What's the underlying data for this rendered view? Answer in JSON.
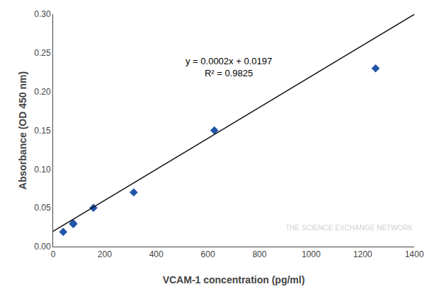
{
  "chart_data": {
    "type": "scatter",
    "xlabel": "VCAM-1 concentration (pg/ml)",
    "ylabel": "Absorbance (OD 450 nm)",
    "series": [
      {
        "type": "scatter",
        "marker": "diamond",
        "color": "#2255aa",
        "x": [
          39.06,
          78.13,
          78.13,
          156.25,
          312.5,
          625.0,
          1250.0
        ],
        "values": [
          0.019,
          0.029,
          0.03,
          0.05,
          0.07,
          0.15,
          0.23
        ]
      },
      {
        "type": "line",
        "line_style": "solid",
        "color": "#111111",
        "x": [
          0,
          1400
        ],
        "values": [
          0.0197,
          0.2997
        ]
      }
    ],
    "annotations": [
      {
        "text": "y = 0.0002x + 0.0197\nR² = 0.9825",
        "x": 680,
        "y": 0.248
      },
      {
        "text": "THE SCIENCE EXCHANGE NETWORK",
        "color": "#c8c8c8"
      }
    ],
    "xlim": [
      0,
      1400
    ],
    "ylim": [
      0,
      0.3
    ],
    "xticks": [
      0,
      200,
      400,
      600,
      800,
      1000,
      1200,
      1400
    ],
    "yticks": [
      {
        "value": 0,
        "label": "0.00"
      },
      0.05,
      {
        "value": 0.1,
        "label": "0.10"
      },
      0.15,
      {
        "value": 0.2,
        "label": "0.20"
      },
      0.25,
      {
        "value": 0.3,
        "label": "0.30"
      }
    ],
    "grid": false
  }
}
